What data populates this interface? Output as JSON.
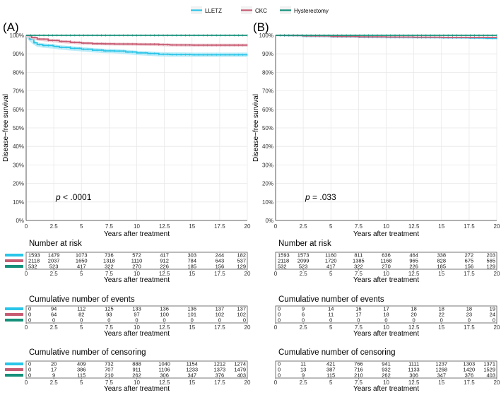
{
  "colors": {
    "LLETZ": "#29c5e8",
    "CKC": "#c75b72",
    "Hysterectomy": "#15907a",
    "grid": "#e8e8e8",
    "band_LLETZ": "#aee9f6",
    "band_CKC": "#ecc3cc"
  },
  "legend": [
    {
      "name": "LLETZ",
      "color": "#29c5e8"
    },
    {
      "name": "CKC",
      "color": "#c75b72"
    },
    {
      "name": "Hysterectomy",
      "color": "#15907a"
    }
  ],
  "chart_data": [
    {
      "type": "line",
      "panel_label": "(A)",
      "ylabel": "Disease−free survival",
      "xlabel": "Years after treatment",
      "xlim": [
        0,
        20
      ],
      "ylim": [
        0,
        100
      ],
      "xticks": [
        "0",
        "2.5",
        "5",
        "7.5",
        "10",
        "12.5",
        "15",
        "17.5",
        "20"
      ],
      "yticks": [
        "0%",
        "10%",
        "20%",
        "30%",
        "40%",
        "50%",
        "60%",
        "70%",
        "80%",
        "90%",
        "100%"
      ],
      "p_label": "p",
      "p_value": " < .0001",
      "series": [
        {
          "name": "LLETZ",
          "band": 1.2,
          "points": [
            [
              0,
              100
            ],
            [
              0.3,
              98
            ],
            [
              0.7,
              96
            ],
            [
              1,
              95
            ],
            [
              1.5,
              94.5
            ],
            [
              2.5,
              94
            ],
            [
              3,
              93.5
            ],
            [
              4,
              93
            ],
            [
              5,
              92.5
            ],
            [
              6,
              92
            ],
            [
              7,
              91.6
            ],
            [
              8,
              91.5
            ],
            [
              9,
              91
            ],
            [
              10,
              90.5
            ],
            [
              11,
              90.2
            ],
            [
              12,
              89.8
            ],
            [
              13,
              89.6
            ],
            [
              14,
              89.6
            ],
            [
              15,
              89.5
            ],
            [
              17,
              89.5
            ],
            [
              20,
              89.5
            ]
          ]
        },
        {
          "name": "CKC",
          "band": 0.8,
          "points": [
            [
              0,
              100
            ],
            [
              0.5,
              98.8
            ],
            [
              1,
              98
            ],
            [
              2,
              97.3
            ],
            [
              3,
              96.7
            ],
            [
              4,
              96.2
            ],
            [
              5,
              95.8
            ],
            [
              6,
              95.5
            ],
            [
              7,
              95.4
            ],
            [
              8,
              95.3
            ],
            [
              10,
              95.2
            ],
            [
              12,
              95
            ],
            [
              13,
              94.8
            ],
            [
              15,
              94.7
            ],
            [
              20,
              94.7
            ]
          ]
        },
        {
          "name": "Hysterectomy",
          "band": 0,
          "points": [
            [
              0,
              100
            ],
            [
              20,
              100
            ]
          ]
        }
      ],
      "risk_tables": [
        {
          "title": "Number at risk",
          "rows": [
            {
              "name": "LLETZ",
              "values": [
                "1593",
                "1479",
                "1073",
                "736",
                "572",
                "417",
                "303",
                "244",
                "182"
              ]
            },
            {
              "name": "CKC",
              "values": [
                "2118",
                "2037",
                "1650",
                "1318",
                "1110",
                "912",
                "784",
                "643",
                "537"
              ]
            },
            {
              "name": "Hysterectomy",
              "values": [
                "532",
                "523",
                "417",
                "322",
                "270",
                "226",
                "185",
                "156",
                "129"
              ]
            }
          ]
        },
        {
          "title": "Cumulative number of events",
          "rows": [
            {
              "name": "LLETZ",
              "values": [
                "0",
                "94",
                "112",
                "125",
                "133",
                "136",
                "136",
                "137",
                "137"
              ]
            },
            {
              "name": "CKC",
              "values": [
                "0",
                "64",
                "82",
                "93",
                "97",
                "100",
                "101",
                "102",
                "102"
              ]
            },
            {
              "name": "Hysterectomy",
              "values": [
                "0",
                "0",
                "0",
                "0",
                "0",
                "0",
                "0",
                "0",
                "0"
              ]
            }
          ]
        },
        {
          "title": "Cumulative number of censoring",
          "rows": [
            {
              "name": "LLETZ",
              "values": [
                "0",
                "20",
                "409",
                "732",
                "888",
                "1040",
                "1154",
                "1212",
                "1274"
              ]
            },
            {
              "name": "CKC",
              "values": [
                "0",
                "17",
                "386",
                "707",
                "911",
                "1106",
                "1233",
                "1373",
                "1479"
              ]
            },
            {
              "name": "Hysterectomy",
              "values": [
                "0",
                "9",
                "115",
                "210",
                "262",
                "306",
                "347",
                "376",
                "403"
              ]
            }
          ]
        }
      ]
    },
    {
      "type": "line",
      "panel_label": "(B)",
      "ylabel": "Disease−free survival",
      "xlabel": "Years after treatment",
      "xlim": [
        0,
        20
      ],
      "ylim": [
        0,
        100
      ],
      "xticks": [
        "0",
        "2.5",
        "5",
        "7.5",
        "10",
        "12.5",
        "15",
        "17.5",
        "20"
      ],
      "yticks": [
        "0%",
        "10%",
        "20%",
        "30%",
        "40%",
        "50%",
        "60%",
        "70%",
        "80%",
        "90%",
        "100%"
      ],
      "p_label": "p",
      "p_value": " = .033",
      "series": [
        {
          "name": "LLETZ",
          "band": 0.5,
          "points": [
            [
              0,
              100
            ],
            [
              2.5,
              99.5
            ],
            [
              5,
              99.2
            ],
            [
              7.5,
              99
            ],
            [
              10,
              98.9
            ],
            [
              12.5,
              98.8
            ],
            [
              15,
              98.7
            ],
            [
              17.5,
              98.6
            ],
            [
              19,
              98.4
            ],
            [
              20,
              98.3
            ]
          ]
        },
        {
          "name": "CKC",
          "band": 0.4,
          "points": [
            [
              0,
              100
            ],
            [
              2.5,
              99.7
            ],
            [
              5,
              99.4
            ],
            [
              7.5,
              99.2
            ],
            [
              10,
              99.1
            ],
            [
              12.5,
              99
            ],
            [
              15,
              98.9
            ],
            [
              17.5,
              98.9
            ],
            [
              20,
              98.9
            ]
          ]
        },
        {
          "name": "Hysterectomy",
          "band": 0,
          "points": [
            [
              0,
              100
            ],
            [
              20,
              100
            ]
          ]
        }
      ],
      "risk_tables": [
        {
          "title": "Number at risk",
          "rows": [
            {
              "name": "LLETZ",
              "values": [
                "1593",
                "1573",
                "1160",
                "811",
                "636",
                "464",
                "338",
                "272",
                "203"
              ]
            },
            {
              "name": "CKC",
              "values": [
                "2118",
                "2099",
                "1720",
                "1385",
                "1168",
                "965",
                "828",
                "675",
                "565"
              ]
            },
            {
              "name": "Hysterectomy",
              "values": [
                "532",
                "523",
                "417",
                "322",
                "270",
                "226",
                "185",
                "156",
                "129"
              ]
            }
          ]
        },
        {
          "title": "Cumulative number of events",
          "rows": [
            {
              "name": "LLETZ",
              "values": [
                "0",
                "9",
                "14",
                "16",
                "17",
                "18",
                "18",
                "18",
                "19"
              ]
            },
            {
              "name": "CKC",
              "values": [
                "0",
                "6",
                "11",
                "17",
                "18",
                "20",
                "22",
                "23",
                "24"
              ]
            },
            {
              "name": "Hysterectomy",
              "values": [
                "0",
                "0",
                "0",
                "0",
                "0",
                "0",
                "0",
                "0",
                "0"
              ]
            }
          ]
        },
        {
          "title": "Cumulative number of censoring",
          "rows": [
            {
              "name": "LLETZ",
              "values": [
                "0",
                "11",
                "421",
                "766",
                "941",
                "1111",
                "1237",
                "1303",
                "1371"
              ]
            },
            {
              "name": "CKC",
              "values": [
                "0",
                "13",
                "387",
                "716",
                "932",
                "1133",
                "1268",
                "1420",
                "1529"
              ]
            },
            {
              "name": "Hysterectomy",
              "values": [
                "0",
                "9",
                "115",
                "210",
                "262",
                "306",
                "347",
                "376",
                "403"
              ]
            }
          ]
        }
      ]
    }
  ]
}
